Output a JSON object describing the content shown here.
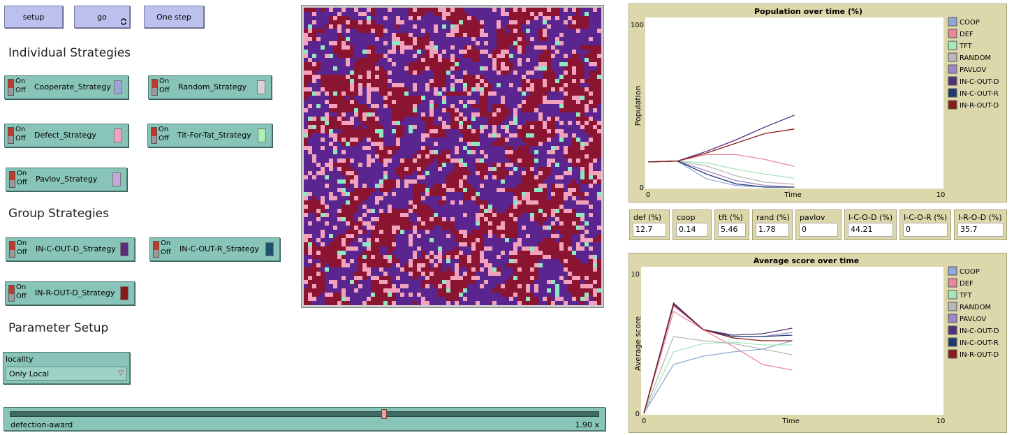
{
  "buttons": [
    {
      "label": "setup"
    },
    {
      "label": "go"
    },
    {
      "label": "One step"
    }
  ],
  "sections": [
    "Individual Strategies",
    "Group Strategies",
    "Parameter Setup"
  ],
  "switches": [
    {
      "on": "On",
      "off": "Off",
      "label": "Cooperate_Strategy",
      "color": "#9aa6d8"
    },
    {
      "on": "On",
      "off": "Off",
      "label": "Random_Strategy",
      "color": "#d4d4d4"
    },
    {
      "on": "On",
      "off": "Off",
      "label": "Defect_Strategy",
      "color": "#f0a4bc"
    },
    {
      "on": "On",
      "off": "Off",
      "label": "Tit-For-Tat_Strategy",
      "color": "#a8f0b4"
    },
    {
      "on": "On",
      "off": "Off",
      "label": "Pavlov_Strategy",
      "color": "#c2a8dc"
    },
    {
      "on": "On",
      "off": "Off",
      "label": "IN-C-OUT-D_Strategy",
      "color": "#5a2e78"
    },
    {
      "on": "On",
      "off": "Off",
      "label": "IN-C-OUT-R_Strategy",
      "color": "#1e5070"
    },
    {
      "on": "On",
      "off": "Off",
      "label": "IN-R-OUT-D_Strategy",
      "color": "#8a1a1a"
    }
  ],
  "chooser": {
    "label": "locality",
    "value": "Only Local"
  },
  "slider": {
    "label": "defection-award",
    "value_label": "1.90 x"
  },
  "monitors": [
    {
      "label": "def (%)",
      "value": 12.7
    },
    {
      "label": "coop (%)",
      "value": 0.14
    },
    {
      "label": "tft (%)",
      "value": 5.46
    },
    {
      "label": "rand (%)",
      "value": 1.78
    },
    {
      "label": "pavlov (%)",
      "value": 0
    },
    {
      "label": "I-C-O-D (%)",
      "value": 44.21
    },
    {
      "label": "I-C-O-R (%)",
      "value": 0
    },
    {
      "label": "I-R-O-D (%)",
      "value": 35.7
    }
  ],
  "chart_data": [
    {
      "type": "line",
      "title": "Population over time (%)",
      "x_label": "Time",
      "y_label": "Population",
      "xlim": [
        0,
        10
      ],
      "ylim": [
        0,
        100
      ],
      "xticks": [
        0,
        10
      ],
      "yticks": [
        0,
        100
      ],
      "x": [
        0,
        1,
        2,
        3,
        4,
        5
      ],
      "series": [
        {
          "name": "COOP",
          "color": "#8fa8d8",
          "values": [
            15.5,
            16,
            5,
            1,
            0,
            0.1
          ]
        },
        {
          "name": "DEF",
          "color": "#e8879c",
          "values": [
            15.5,
            16,
            20,
            20,
            17,
            12.7
          ]
        },
        {
          "name": "TFT",
          "color": "#a4e8b8",
          "values": [
            15.5,
            16,
            15,
            11,
            8,
            5.5
          ]
        },
        {
          "name": "RANDOM",
          "color": "#b8b8b8",
          "values": [
            15.5,
            16,
            13,
            7,
            3,
            1.8
          ]
        },
        {
          "name": "PAVLOV",
          "color": "#a285c9",
          "values": [
            15.5,
            16,
            10,
            4,
            1,
            0
          ]
        },
        {
          "name": "IN-C-OUT-D",
          "color": "#52307a",
          "values": [
            15.5,
            16,
            22,
            29,
            37,
            44.2
          ]
        },
        {
          "name": "IN-C-OUT-R",
          "color": "#1f3a6e",
          "values": [
            15.5,
            16,
            8,
            2,
            0,
            0
          ]
        },
        {
          "name": "IN-R-OUT-D",
          "color": "#8c1b1b",
          "values": [
            15.5,
            16,
            21,
            27,
            33,
            35.7
          ]
        }
      ]
    },
    {
      "type": "line",
      "title": "Average score over time",
      "x_label": "Time",
      "y_label": "Average score",
      "xlim": [
        0,
        10
      ],
      "ylim": [
        0,
        10
      ],
      "xticks": [
        0,
        10
      ],
      "yticks": [
        0,
        10
      ],
      "x": [
        0,
        1,
        2,
        3,
        4,
        5
      ],
      "series": [
        {
          "name": "COOP",
          "color": "#8fa8d8",
          "values": [
            0,
            3.5,
            4.1,
            4.4,
            4.6,
            5.2
          ]
        },
        {
          "name": "DEF",
          "color": "#e8879c",
          "values": [
            0,
            7.3,
            6.0,
            4.8,
            3.5,
            3.1
          ]
        },
        {
          "name": "TFT",
          "color": "#a4e8b8",
          "values": [
            0,
            4.4,
            5.0,
            5.1,
            4.9,
            4.9
          ]
        },
        {
          "name": "RANDOM",
          "color": "#b8b8b8",
          "values": [
            0,
            5.5,
            5.2,
            5.0,
            4.6,
            4.2
          ]
        },
        {
          "name": "PAVLOV",
          "color": "#a285c9",
          "values": [
            0,
            7.7,
            6.0,
            5.5,
            5.5,
            5.8
          ]
        },
        {
          "name": "IN-C-OUT-D",
          "color": "#52307a",
          "values": [
            0,
            7.9,
            6.0,
            5.6,
            5.7,
            6.1
          ]
        },
        {
          "name": "IN-C-OUT-R",
          "color": "#1f3a6e",
          "values": [
            0,
            7.8,
            6.0,
            5.5,
            5.5,
            5.6
          ]
        },
        {
          "name": "IN-R-OUT-D",
          "color": "#8c1b1b",
          "values": [
            0,
            7.8,
            6.0,
            5.4,
            5.2,
            5.2
          ]
        }
      ]
    }
  ]
}
